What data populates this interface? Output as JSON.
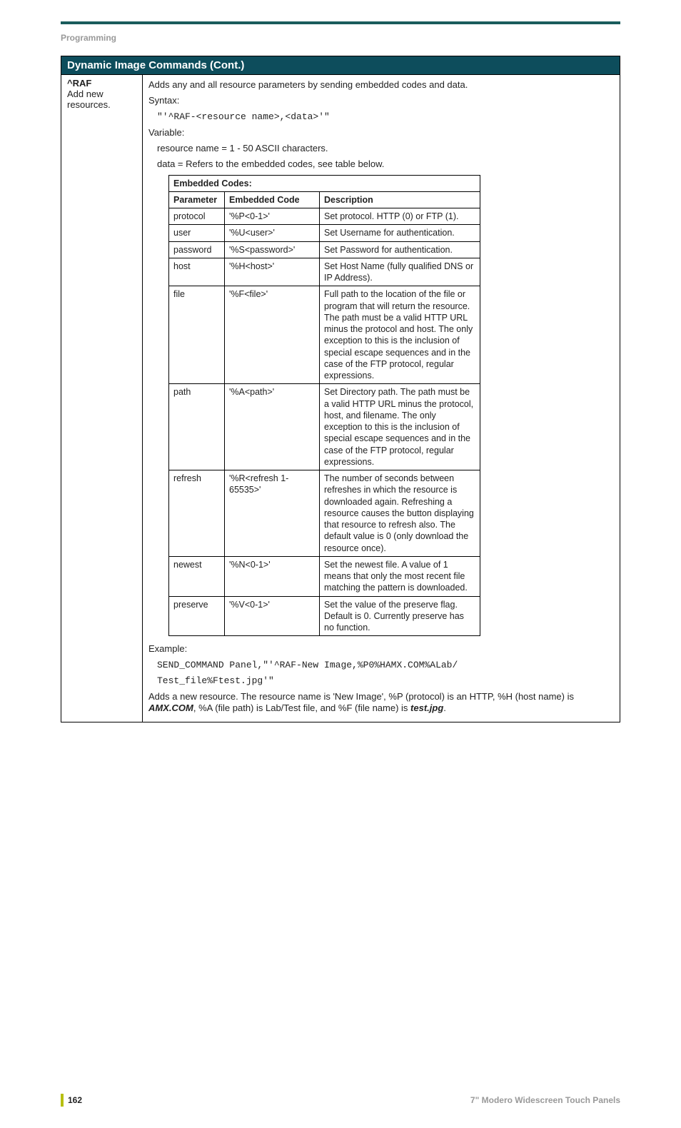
{
  "header": {
    "section": "Programming"
  },
  "main": {
    "title": "Dynamic Image Commands (Cont.)",
    "left": {
      "command": "^RAF",
      "desc": "Add new resources."
    },
    "right": {
      "intro": "Adds any and all resource parameters by sending embedded codes and data.",
      "syntax_label": "Syntax:",
      "syntax_code": "\"'^RAF-<resource name>,<data>'\"",
      "variable_label": "Variable:",
      "variable_line1": "resource name = 1 - 50 ASCII characters.",
      "variable_line2": "data = Refers to the embedded codes, see table below.",
      "inner_title": "Embedded Codes:",
      "columns": {
        "c1": "Parameter",
        "c2": "Embedded Code",
        "c3": "Description"
      },
      "rows": [
        {
          "p": "protocol",
          "c": "'%P<0-1>'",
          "d": "Set protocol. HTTP (0) or FTP (1)."
        },
        {
          "p": "user",
          "c": "'%U<user>'",
          "d": "Set Username for authentication."
        },
        {
          "p": "password",
          "c": "'%S<password>'",
          "d": "Set Password for authentication."
        },
        {
          "p": "host",
          "c": "'%H<host>'",
          "d": "Set Host Name (fully qualified DNS or IP Address)."
        },
        {
          "p": "file",
          "c": "'%F<file>'",
          "d": "Full path to the location of the file or program that will return the resource. The path must be a valid HTTP URL minus the protocol and host. The only exception to this is the inclusion of special escape sequences and in the case of the FTP protocol, regular expressions."
        },
        {
          "p": "path",
          "c": "'%A<path>'",
          "d": "Set Directory path. The path must be a valid HTTP URL minus the protocol, host, and filename. The only exception to this is the inclusion of special escape sequences and in the case of the FTP protocol, regular expressions."
        },
        {
          "p": "refresh",
          "c": "'%R<refresh 1-65535>'",
          "d": "The number of seconds between refreshes in which the resource is downloaded again. Refreshing a resource causes the button displaying that resource to refresh also. The default value is 0 (only download the resource once)."
        },
        {
          "p": "newest",
          "c": "'%N<0-1>'",
          "d": "Set the newest file. A value of 1 means that only the most recent file matching the pattern is downloaded."
        },
        {
          "p": "preserve",
          "c": "'%V<0-1>'",
          "d": "Set the value of the preserve flag. Default is 0. Currently preserve has no function."
        }
      ],
      "example_label": "Example:",
      "example_code1": "SEND_COMMAND Panel,\"'^RAF-New Image,%P0%HAMX.COM%ALab/",
      "example_code2": "Test_file%Ftest.jpg'\"",
      "trailer_pre": "Adds a new resource. The resource name is 'New Image', %P (protocol) is an HTTP, %H (host name) is ",
      "trailer_b1": "AMX.COM",
      "trailer_mid": ", %A (file path) is Lab/Test file, and %F (file name) is ",
      "trailer_b2": "test.jpg",
      "trailer_end": "."
    }
  },
  "footer": {
    "page": "162",
    "doc": "7\" Modero Widescreen Touch Panels"
  }
}
